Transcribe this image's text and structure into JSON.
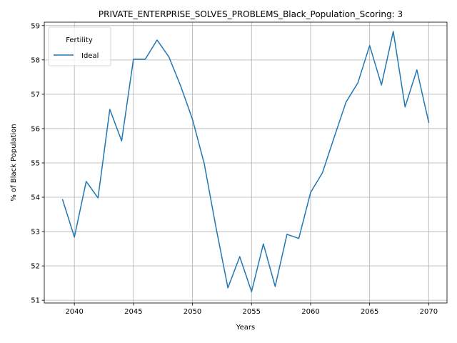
{
  "chart_data": {
    "type": "line",
    "title": "PRIVATE_ENTERPRISE_SOLVES_PROBLEMS_Black_Population_Scoring: 3",
    "xlabel": "Years",
    "ylabel": "% of Black Population",
    "xlim": [
      2037.45,
      2071.55
    ],
    "ylim": [
      50.92,
      59.1
    ],
    "xticks": [
      2040,
      2045,
      2050,
      2055,
      2060,
      2065,
      2070
    ],
    "yticks": [
      51,
      52,
      53,
      54,
      55,
      56,
      57,
      58,
      59
    ],
    "grid": true,
    "legend": {
      "title": "Fertility",
      "position": "top-left"
    },
    "series": [
      {
        "name": "Ideal",
        "color": "#1f77b4",
        "x": [
          2039,
          2040,
          2041,
          2042,
          2043,
          2044,
          2045,
          2046,
          2047,
          2048,
          2049,
          2050,
          2051,
          2052,
          2053,
          2054,
          2055,
          2056,
          2057,
          2058,
          2059,
          2060,
          2061,
          2062,
          2063,
          2064,
          2065,
          2066,
          2067,
          2068,
          2069,
          2070
        ],
        "y": [
          53.93,
          52.84,
          54.46,
          53.98,
          56.56,
          55.64,
          58.02,
          58.02,
          58.58,
          58.09,
          57.24,
          56.27,
          54.97,
          53.1,
          51.36,
          52.27,
          51.25,
          52.64,
          51.4,
          52.92,
          52.8,
          54.14,
          54.71,
          55.75,
          56.77,
          57.33,
          58.42,
          57.27,
          58.83,
          56.63,
          57.71,
          56.18
        ]
      }
    ]
  }
}
